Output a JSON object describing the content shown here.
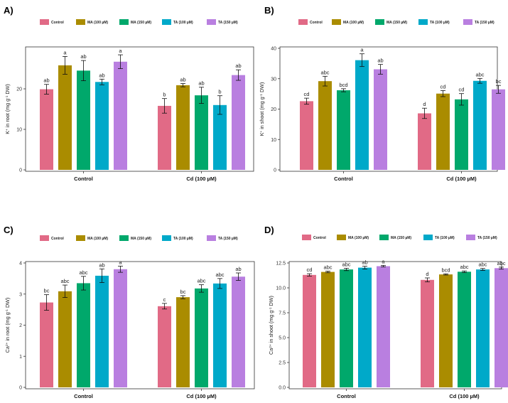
{
  "colors": {
    "Control": "#E16A86",
    "MA (100 µM)": "#AA8C00",
    "MA (150 µM)": "#00A86B",
    "TA (100 µM)": "#00A9C9",
    "TA (150 µM)": "#B97FE0"
  },
  "chart_data": [
    {
      "panel": "A)",
      "type": "bar",
      "legend": [
        "Control",
        "MA (100 µM)",
        "MA (150 µM)",
        "TA (100 µM)",
        "TA (150 µM)"
      ],
      "groups": [
        "Control",
        "Cd (100 µM)"
      ],
      "ylabel": {
        "pre": "K",
        "sup": "+",
        "mid": " in root (mg g",
        "sup2": "-1",
        "post": " DW)"
      },
      "yticks": [
        0,
        10,
        20
      ],
      "ylim": [
        0,
        30
      ],
      "series": [
        {
          "name": "Control",
          "values": [
            19.9,
            15.8
          ],
          "errors": [
            1.2,
            1.8
          ],
          "letters": [
            "ab",
            "b"
          ]
        },
        {
          "name": "MA (100 µM)",
          "values": [
            25.8,
            20.9
          ],
          "errors": [
            2.2,
            0.4
          ],
          "letters": [
            "a",
            "ab"
          ]
        },
        {
          "name": "MA (150 µM)",
          "values": [
            24.5,
            18.4
          ],
          "errors": [
            2.5,
            2.0
          ],
          "letters": [
            "ab",
            "ab"
          ]
        },
        {
          "name": "TA (100 µM)",
          "values": [
            21.7,
            16.0
          ],
          "errors": [
            0.7,
            2.3
          ],
          "letters": [
            "ab",
            "b"
          ]
        },
        {
          "name": "TA (150 µM)",
          "values": [
            26.7,
            23.4
          ],
          "errors": [
            1.7,
            1.3
          ],
          "letters": [
            "a",
            "ab"
          ]
        }
      ]
    },
    {
      "panel": "B)",
      "type": "bar",
      "legend": [
        "Control",
        "MA (100 µM)",
        "MA (150 µM)",
        "TA (100 µM)",
        "TA (150 µM)"
      ],
      "groups": [
        "Control",
        "Cd (100 µM)"
      ],
      "ylabel": {
        "pre": "K",
        "sup": "+",
        "mid": " in shoot (mg g",
        "sup2": "-1",
        "post": " DW)"
      },
      "yticks": [
        0,
        10,
        20,
        30,
        40
      ],
      "ylim": [
        0,
        40
      ],
      "series": [
        {
          "name": "Control",
          "values": [
            22.6,
            18.6
          ],
          "errors": [
            1.0,
            1.7
          ],
          "letters": [
            "cd",
            "d"
          ]
        },
        {
          "name": "MA (100 µM)",
          "values": [
            29.2,
            25.1
          ],
          "errors": [
            1.6,
            1.0
          ],
          "letters": [
            "abc",
            "cd"
          ]
        },
        {
          "name": "MA (150 µM)",
          "values": [
            26.2,
            23.2
          ],
          "errors": [
            0.5,
            1.9
          ],
          "letters": [
            "bcd",
            "cd"
          ]
        },
        {
          "name": "TA (100 µM)",
          "values": [
            36.1,
            29.3
          ],
          "errors": [
            2.1,
            0.8
          ],
          "letters": [
            "a",
            "abc"
          ]
        },
        {
          "name": "TA (150 µM)",
          "values": [
            33.1,
            26.5
          ],
          "errors": [
            1.6,
            1.3
          ],
          "letters": [
            "ab",
            "bc"
          ]
        }
      ]
    },
    {
      "panel": "C)",
      "type": "bar",
      "legend": [
        "Control",
        "MA (100 µM)",
        "MA (150 µM)",
        "TA (100 µM)",
        "TA (150 µM)"
      ],
      "groups": [
        "Control",
        "Cd (100 µM)"
      ],
      "ylabel": {
        "pre": "Ca",
        "sup": "2+",
        "mid": " in root (mg g",
        "sup2": "-1",
        "post": " DW)"
      },
      "yticks": [
        0,
        1,
        2,
        3,
        4
      ],
      "ylim": [
        0,
        4
      ],
      "series": [
        {
          "name": "Control",
          "values": [
            2.73,
            2.61
          ],
          "errors": [
            0.25,
            0.09
          ],
          "letters": [
            "bc",
            "c"
          ]
        },
        {
          "name": "MA (100 µM)",
          "values": [
            3.09,
            2.9
          ],
          "errors": [
            0.2,
            0.05
          ],
          "letters": [
            "abc",
            "bc"
          ]
        },
        {
          "name": "MA (150 µM)",
          "values": [
            3.35,
            3.18
          ],
          "errors": [
            0.22,
            0.12
          ],
          "letters": [
            "abc",
            "abc"
          ]
        },
        {
          "name": "TA (100 µM)",
          "values": [
            3.59,
            3.34
          ],
          "errors": [
            0.22,
            0.16
          ],
          "letters": [
            "ab",
            "abc"
          ]
        },
        {
          "name": "TA (150 µM)",
          "values": [
            3.8,
            3.56
          ],
          "errors": [
            0.1,
            0.12
          ],
          "letters": [
            "a",
            "ab"
          ]
        }
      ]
    },
    {
      "panel": "D)",
      "type": "bar",
      "legend": [
        "Control",
        "MA (100 µM)",
        "MA (150 µM)",
        "TA (100 µM)",
        "TA (150 µM)"
      ],
      "groups": [
        "Control",
        "Cd (100 µM)"
      ],
      "ylabel": {
        "pre": "Ca",
        "sup": "2+",
        "mid": " in shoot (mg g",
        "sup2": "-1",
        "post": " DW)"
      },
      "yticks": [
        0.0,
        2.5,
        5.0,
        7.5,
        10.0,
        12.5
      ],
      "ylim": [
        0,
        12.5
      ],
      "series": [
        {
          "name": "Control",
          "values": [
            11.3,
            10.8
          ],
          "errors": [
            0.12,
            0.2
          ],
          "letters": [
            "cd",
            "d"
          ]
        },
        {
          "name": "MA (100 µM)",
          "values": [
            11.6,
            11.35
          ],
          "errors": [
            0.08,
            0.06
          ],
          "letters": [
            "abc",
            "bcd"
          ]
        },
        {
          "name": "MA (150 µM)",
          "values": [
            11.85,
            11.62
          ],
          "errors": [
            0.12,
            0.08
          ],
          "letters": [
            "abc",
            "abc"
          ]
        },
        {
          "name": "TA (100 µM)",
          "values": [
            12.03,
            11.85
          ],
          "errors": [
            0.14,
            0.1
          ],
          "letters": [
            "ab",
            "abc"
          ]
        },
        {
          "name": "TA (150 µM)",
          "values": [
            12.18,
            11.98
          ],
          "errors": [
            0.08,
            0.1
          ],
          "letters": [
            "a",
            "abc"
          ]
        }
      ]
    }
  ]
}
